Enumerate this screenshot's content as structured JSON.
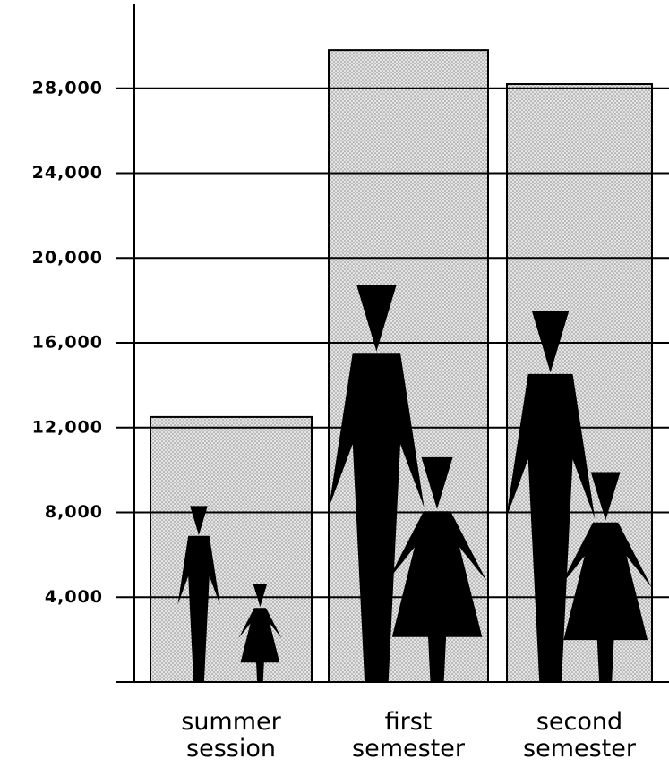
{
  "chart_data": {
    "type": "bar",
    "categories": [
      "summer session",
      "first semester",
      "second semester"
    ],
    "values": [
      12500,
      29800,
      28200
    ],
    "color": "#d9d9d9",
    "series": [
      {
        "color": "#000000",
        "values": [
          8300,
          18700,
          17500
        ]
      },
      {
        "color": "#000000",
        "values": [
          4600,
          10600,
          9900
        ]
      }
    ],
    "ylim": [
      0,
      32000
    ],
    "yticks": [
      {
        "value": 4000,
        "label": "4,000"
      },
      {
        "value": 8000,
        "label": "8,000"
      },
      {
        "value": 12000,
        "label": "12,000"
      },
      {
        "value": 16000,
        "label": "16,000"
      },
      {
        "value": 20000,
        "label": "20,000"
      },
      {
        "value": 24000,
        "label": "24,000"
      },
      {
        "value": 28000,
        "label": "28,000"
      }
    ],
    "grid": true
  }
}
